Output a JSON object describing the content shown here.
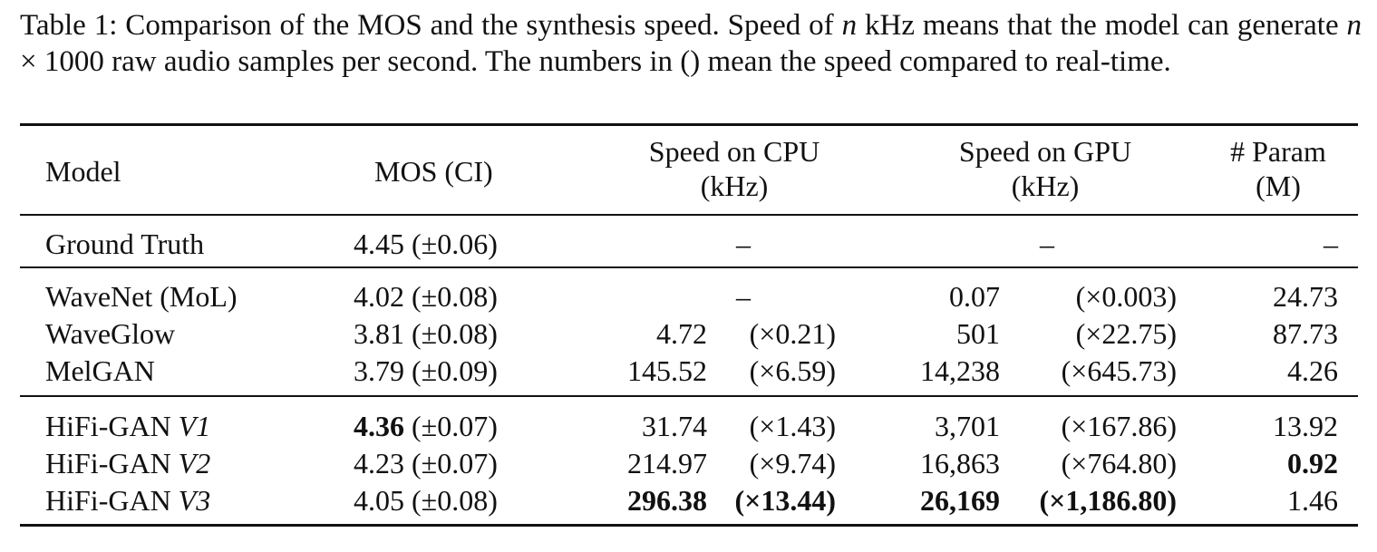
{
  "caption": {
    "part1": "Table 1: Comparison of the MOS and the synthesis speed. Speed of ",
    "n1": "n",
    "part2": " kHz means that the model can generate ",
    "n2": "n",
    "part3": " × 1000 raw audio samples per second. The numbers in () mean the speed compared to real-time."
  },
  "headers": {
    "model": "Model",
    "mos": "MOS (CI)",
    "cpu_line1": "Speed on CPU",
    "cpu_line2": "(kHz)",
    "gpu_line1": "Speed on GPU",
    "gpu_line2": "(kHz)",
    "param_line1": "# Param",
    "param_line2": "(M)"
  },
  "rows": {
    "ground_truth": {
      "model": "Ground Truth",
      "mos": "4.45 (±0.06)",
      "cpu": "–",
      "gpu": "–",
      "param": "–"
    },
    "wavenet": {
      "model": "WaveNet (MoL)",
      "mos": "4.02 (±0.08)",
      "cpu": "–",
      "gpu_val": "0.07",
      "gpu_ratio": "(×0.003)",
      "param": "24.73"
    },
    "waveglow": {
      "model": "WaveGlow",
      "mos": "3.81 (±0.08)",
      "cpu_val": "4.72",
      "cpu_ratio": "(×0.21)",
      "gpu_val": "501",
      "gpu_ratio": "(×22.75)",
      "param": "87.73"
    },
    "melgan": {
      "model": "MelGAN",
      "mos": "3.79 (±0.09)",
      "cpu_val": "145.52",
      "cpu_ratio": "(×6.59)",
      "gpu_val": "14,238",
      "gpu_ratio": "(×645.73)",
      "param": "4.26"
    },
    "hifi_v1": {
      "model_prefix": "HiFi-GAN ",
      "model_version": "V1",
      "mos_bold": "4.36",
      "mos_ci": " (±0.07)",
      "cpu_val": "31.74",
      "cpu_ratio": "(×1.43)",
      "gpu_val": "3,701",
      "gpu_ratio": "(×167.86)",
      "param": "13.92"
    },
    "hifi_v2": {
      "model_prefix": "HiFi-GAN ",
      "model_version": "V2",
      "mos": "4.23 (±0.07)",
      "cpu_val": "214.97",
      "cpu_ratio": "(×9.74)",
      "gpu_val": "16,863",
      "gpu_ratio": "(×764.80)",
      "param": "0.92"
    },
    "hifi_v3": {
      "model_prefix": "HiFi-GAN ",
      "model_version": "V3",
      "mos": "4.05 (±0.08)",
      "cpu_val": "296.38",
      "cpu_ratio": "(×13.44)",
      "gpu_val": "26,169",
      "gpu_ratio": "(×1,186.80)",
      "param": "1.46"
    }
  }
}
